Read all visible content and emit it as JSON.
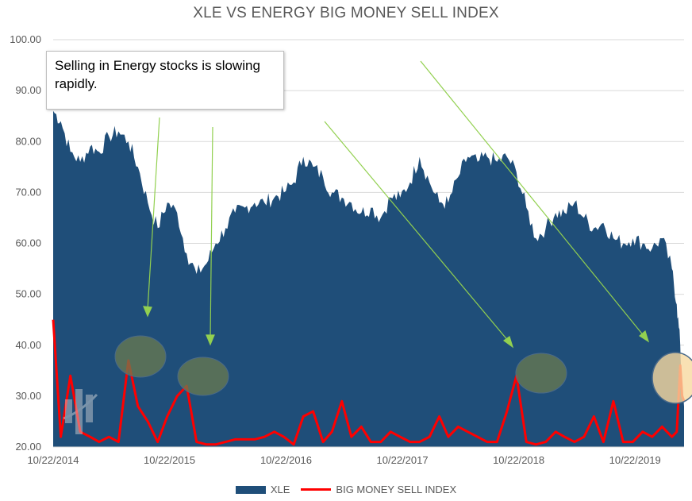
{
  "chart_data": {
    "type": "area",
    "title": "XLE VS ENERGY BIG MONEY SELL INDEX",
    "ylim": [
      20,
      100
    ],
    "yticks": [
      "20.00",
      "30.00",
      "40.00",
      "50.00",
      "60.00",
      "70.00",
      "80.00",
      "90.00",
      "100.00"
    ],
    "xticks": [
      "10/22/2014",
      "10/22/2015",
      "10/22/2016",
      "10/22/2017",
      "10/22/2018",
      "10/22/2019"
    ],
    "x": [
      "2014-10-22",
      "2014-11-15",
      "2014-12-15",
      "2015-01-15",
      "2015-02-15",
      "2015-03-15",
      "2015-04-15",
      "2015-05-15",
      "2015-06-15",
      "2015-07-15",
      "2015-08-15",
      "2015-09-15",
      "2015-10-15",
      "2015-11-15",
      "2015-12-15",
      "2016-01-15",
      "2016-02-15",
      "2016-03-15",
      "2016-04-15",
      "2016-05-15",
      "2016-06-15",
      "2016-07-15",
      "2016-08-15",
      "2016-09-15",
      "2016-10-15",
      "2016-11-15",
      "2016-12-15",
      "2017-01-15",
      "2017-02-15",
      "2017-03-15",
      "2017-04-15",
      "2017-05-15",
      "2017-06-15",
      "2017-07-15",
      "2017-08-15",
      "2017-09-15",
      "2017-10-15",
      "2017-11-15",
      "2017-12-15",
      "2018-01-15",
      "2018-02-15",
      "2018-03-15",
      "2018-04-15",
      "2018-05-15",
      "2018-06-15",
      "2018-07-15",
      "2018-08-15",
      "2018-09-15",
      "2018-10-15",
      "2018-11-15",
      "2018-12-15",
      "2019-01-15",
      "2019-02-15",
      "2019-03-15",
      "2019-04-15",
      "2019-05-15",
      "2019-06-15",
      "2019-07-15",
      "2019-08-15",
      "2019-09-15",
      "2019-10-15",
      "2019-11-15",
      "2019-12-15",
      "2020-01-15",
      "2020-02-15",
      "2020-03-01",
      "2020-03-12",
      "2020-03-18",
      "2020-03-24"
    ],
    "series": [
      {
        "name": "XLE",
        "color": "#1f4e79",
        "values": [
          86,
          84,
          78,
          76,
          79,
          78,
          81,
          82,
          80,
          75,
          68,
          63,
          68,
          66,
          58,
          54,
          56,
          60,
          63,
          66,
          67,
          68,
          68,
          69,
          70,
          72,
          77,
          75,
          73,
          70,
          69,
          68,
          66,
          67,
          65,
          69,
          69,
          72,
          77,
          72,
          68,
          68,
          73,
          77,
          76,
          77,
          76,
          77,
          74,
          67,
          61,
          63,
          66,
          66,
          68,
          65,
          63,
          64,
          61,
          60,
          61,
          60,
          59,
          61,
          55,
          48,
          40,
          30,
          28
        ]
      },
      {
        "name": "BIG MONEY SELL INDEX",
        "color": "#ff0000",
        "values": [
          45,
          22,
          34,
          23,
          22,
          21,
          22,
          21,
          37,
          28,
          25,
          21,
          26,
          30,
          32,
          21,
          20.5,
          20.5,
          21,
          21.5,
          21.5,
          21.5,
          22,
          23,
          22,
          20.5,
          26,
          27,
          21,
          23,
          29,
          22,
          24,
          21,
          21,
          23,
          22,
          21,
          21,
          22,
          26,
          22,
          24,
          23,
          22,
          21,
          21,
          27,
          34,
          21,
          20.5,
          21,
          23,
          22,
          21,
          22,
          26,
          21,
          29,
          21,
          21,
          23,
          22,
          24,
          22,
          23,
          36,
          30,
          29
        ]
      }
    ],
    "legend": "bottom",
    "grid": "horizontal"
  },
  "annotation": {
    "text": "Selling in Energy stocks is slowing rapidly."
  }
}
